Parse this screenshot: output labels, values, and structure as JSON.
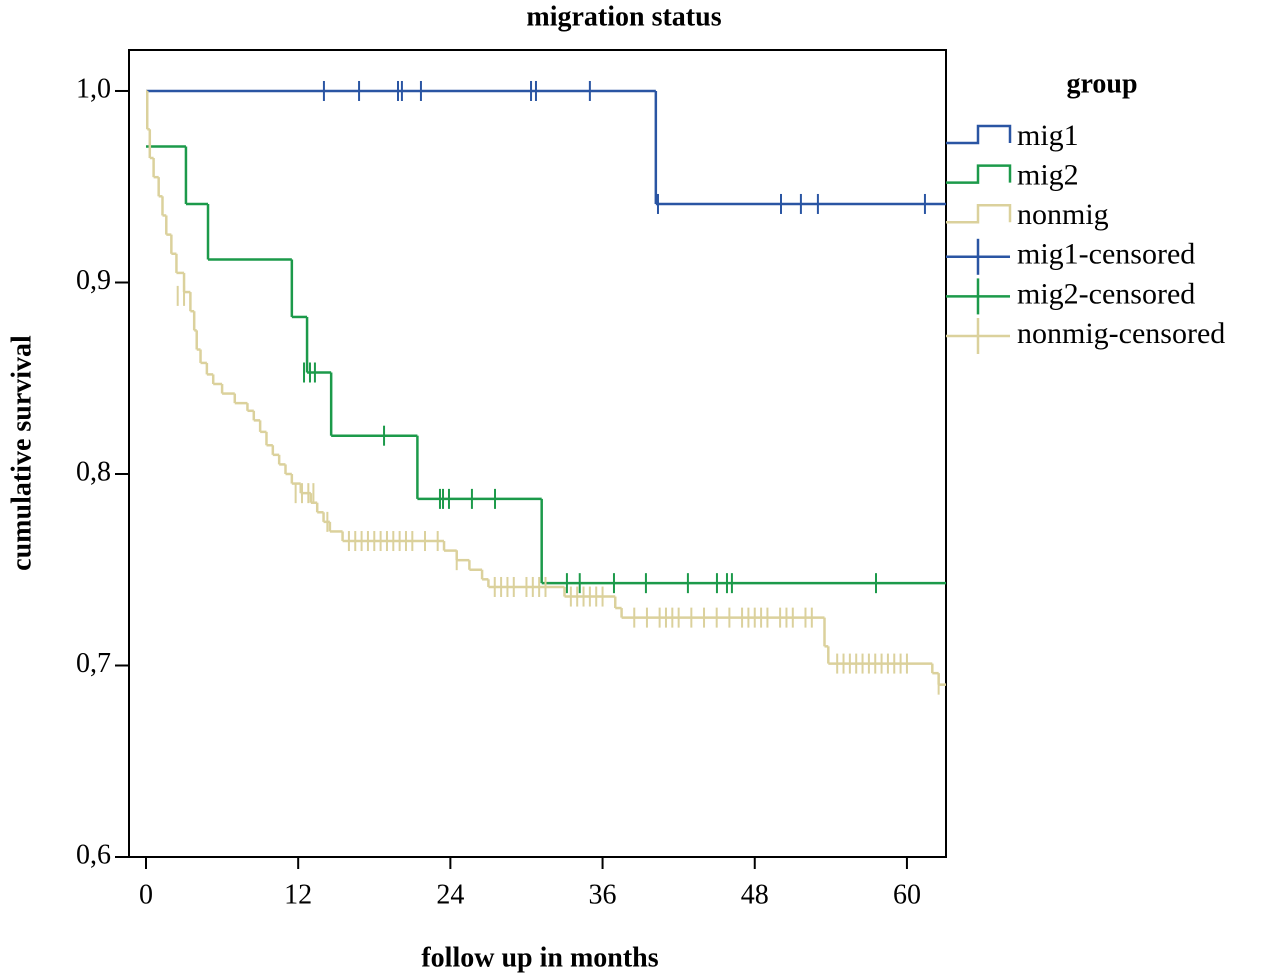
{
  "chart_data": {
    "type": "step",
    "title": "migration status",
    "x_label": "follow up in months",
    "y_label": "cumulative survival",
    "legend_title": "group",
    "xlim": [
      -1.34,
      63.08
    ],
    "ylim": [
      0.6,
      1.0214
    ],
    "xticks": [
      0,
      12,
      24,
      36,
      48,
      60
    ],
    "yticks": [
      {
        "value": 0.6,
        "label": "0,6"
      },
      {
        "value": 0.7,
        "label": "0,7"
      },
      {
        "value": 0.8,
        "label": "0,8"
      },
      {
        "value": 0.9,
        "label": "0,9"
      },
      {
        "value": 1.0,
        "label": "1,0"
      }
    ],
    "series": [
      {
        "name": "mig1",
        "color": "#2a55a3",
        "marker": "step",
        "x": [
          0,
          40.2,
          63.08
        ],
        "values": [
          1.0,
          0.941,
          0.941
        ]
      },
      {
        "name": "mig2",
        "color": "#1c9a4a",
        "marker": "step",
        "x": [
          0,
          3.15,
          4.89,
          11.5,
          12.7,
          14.6,
          21.4,
          31.2,
          63.08
        ],
        "values": [
          0.971,
          0.941,
          0.912,
          0.882,
          0.853,
          0.82,
          0.787,
          0.743,
          0.743
        ]
      },
      {
        "name": "nonmig",
        "color": "#dbd19c",
        "marker": "step",
        "x": [
          0,
          0.1,
          0.3,
          0.6,
          1.0,
          1.3,
          1.6,
          2.0,
          2.4,
          3.0,
          3.5,
          3.8,
          4.0,
          4.3,
          4.8,
          5.3,
          6.0,
          7.0,
          8.0,
          8.5,
          9.0,
          9.5,
          10.0,
          10.5,
          11.0,
          11.5,
          12.2,
          13.0,
          13.5,
          14.0,
          14.5,
          15.5,
          23.5,
          24.5,
          25.5,
          26.5,
          27.0,
          33.0,
          37.0,
          37.5,
          53.5,
          53.8,
          62.0,
          62.5,
          63.08
        ],
        "values": [
          1.0,
          0.98,
          0.965,
          0.955,
          0.945,
          0.935,
          0.925,
          0.915,
          0.905,
          0.895,
          0.885,
          0.875,
          0.865,
          0.858,
          0.852,
          0.847,
          0.842,
          0.837,
          0.833,
          0.828,
          0.822,
          0.815,
          0.81,
          0.805,
          0.8,
          0.795,
          0.79,
          0.785,
          0.78,
          0.775,
          0.77,
          0.765,
          0.76,
          0.755,
          0.75,
          0.745,
          0.741,
          0.736,
          0.73,
          0.725,
          0.71,
          0.701,
          0.696,
          0.69,
          0.69
        ]
      },
      {
        "name": "mig1-censored",
        "color": "#2a55a3",
        "marker": "tick",
        "x": [
          14.03,
          16.8,
          19.87,
          20.18,
          21.68,
          30.36,
          30.75,
          35.0,
          40.37,
          50.07,
          51.64,
          52.98,
          61.42
        ],
        "values": [
          1.0,
          1.0,
          1.0,
          1.0,
          1.0,
          1.0,
          1.0,
          1.0,
          0.941,
          0.941,
          0.941,
          0.941,
          0.941
        ]
      },
      {
        "name": "mig2-censored",
        "color": "#1c9a4a",
        "marker": "tick",
        "x": [
          12.46,
          12.93,
          13.32,
          18.77,
          23.18,
          23.42,
          23.89,
          25.7,
          27.52,
          33.19,
          34.2,
          36.9,
          39.42,
          42.73,
          45.02,
          45.81,
          46.2,
          57.56
        ],
        "values": [
          0.853,
          0.853,
          0.853,
          0.82,
          0.787,
          0.787,
          0.787,
          0.787,
          0.787,
          0.743,
          0.743,
          0.743,
          0.743,
          0.743,
          0.743,
          0.743,
          0.743,
          0.743
        ]
      },
      {
        "name": "nonmig-censored",
        "color": "#dbd19c",
        "marker": "tick",
        "x": [
          2.5,
          3.0,
          11.8,
          12.3,
          12.8,
          13.2,
          14.3,
          16,
          16.5,
          17,
          17.5,
          18,
          18.5,
          19,
          19.5,
          20,
          20.5,
          21,
          22,
          23,
          24.5,
          27.5,
          28,
          28.5,
          29,
          30,
          30.5,
          31,
          31.5,
          33.5,
          34,
          34.5,
          35,
          35.5,
          36,
          38.5,
          39.5,
          40.5,
          41,
          41.5,
          42,
          43,
          44,
          45,
          46,
          47,
          47.5,
          48,
          48.5,
          49,
          50,
          50.5,
          51,
          52,
          52.5,
          54.5,
          55,
          55.5,
          56,
          56.5,
          57,
          57.5,
          58,
          58.5,
          59,
          59.5,
          60,
          62.5
        ],
        "values": [
          0.893,
          0.893,
          0.79,
          0.79,
          0.79,
          0.79,
          0.775,
          0.765,
          0.765,
          0.765,
          0.765,
          0.765,
          0.765,
          0.765,
          0.765,
          0.765,
          0.765,
          0.765,
          0.765,
          0.765,
          0.755,
          0.741,
          0.741,
          0.741,
          0.741,
          0.741,
          0.741,
          0.741,
          0.741,
          0.736,
          0.736,
          0.736,
          0.736,
          0.736,
          0.736,
          0.725,
          0.725,
          0.725,
          0.725,
          0.725,
          0.725,
          0.725,
          0.725,
          0.725,
          0.725,
          0.725,
          0.725,
          0.725,
          0.725,
          0.725,
          0.725,
          0.725,
          0.725,
          0.725,
          0.725,
          0.701,
          0.701,
          0.701,
          0.701,
          0.701,
          0.701,
          0.701,
          0.701,
          0.701,
          0.701,
          0.701,
          0.701,
          0.69
        ]
      }
    ]
  }
}
